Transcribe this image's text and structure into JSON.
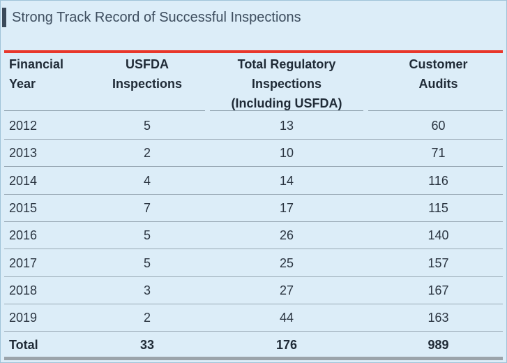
{
  "title": "Strong Track Record of Successful Inspections",
  "chart_data": {
    "type": "table",
    "columns": [
      "Financial Year",
      "USFDA Inspections",
      "Total Regulatory Inspections (Including USFDA)",
      "Customer Audits"
    ],
    "header_lines": [
      [
        "Financial",
        "Year"
      ],
      [
        "USFDA",
        "Inspections"
      ],
      [
        "Total Regulatory",
        "Inspections",
        "(Including USFDA)"
      ],
      [
        "Customer",
        "Audits"
      ]
    ],
    "rows": [
      [
        "2012",
        "5",
        "13",
        "60"
      ],
      [
        "2013",
        "2",
        "10",
        "71"
      ],
      [
        "2014",
        "4",
        "14",
        "116"
      ],
      [
        "2015",
        "7",
        "17",
        "115"
      ],
      [
        "2016",
        "5",
        "26",
        "140"
      ],
      [
        "2017",
        "5",
        "25",
        "157"
      ],
      [
        "2018",
        "3",
        "27",
        "167"
      ],
      [
        "2019",
        "2",
        "44",
        "163"
      ]
    ],
    "total": [
      "Total",
      "33",
      "176",
      "989"
    ]
  },
  "colors": {
    "background": "#dcedf8",
    "accent_rule": "#e8372b",
    "title_bar": "#3b4a5a"
  }
}
